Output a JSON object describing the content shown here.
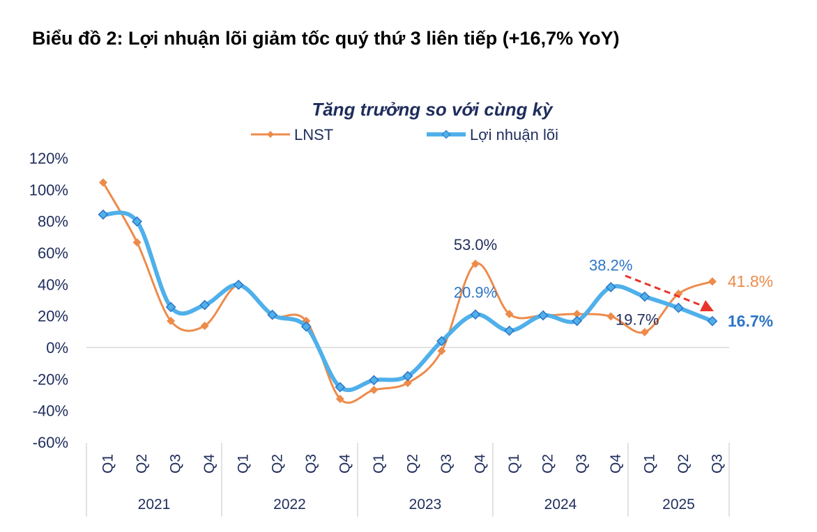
{
  "page_title": "Biểu đồ 2: Lợi nhuận lõi giảm tốc quý thứ 3 liên tiếp (+16,7% YoY)",
  "chart_data": {
    "type": "line",
    "title": "Tăng trưởng so với cùng kỳ",
    "legend_position": "top",
    "ylim": [
      -60,
      120
    ],
    "yticks": [
      "-60%",
      "-40%",
      "-20%",
      "0%",
      "20%",
      "40%",
      "60%",
      "80%",
      "100%",
      "120%"
    ],
    "ytick_values": [
      -60,
      -40,
      -20,
      0,
      20,
      40,
      60,
      80,
      100,
      120
    ],
    "grid": false,
    "categories": [
      "Q1",
      "Q2",
      "Q3",
      "Q4",
      "Q1",
      "Q2",
      "Q3",
      "Q4",
      "Q1",
      "Q2",
      "Q3",
      "Q4",
      "Q1",
      "Q2",
      "Q3",
      "Q4",
      "Q1",
      "Q2",
      "Q3"
    ],
    "years": [
      "2021",
      "2022",
      "2023",
      "2024",
      "2025"
    ],
    "series": [
      {
        "name": "LNST",
        "color": "#ED8B4B",
        "values": [
          104.5,
          66.6,
          16.8,
          13.7,
          39.7,
          20.3,
          16.8,
          -32.6,
          -26.9,
          -22.5,
          -2.2,
          53.0,
          21.2,
          20.3,
          21.2,
          19.7,
          9.7,
          34.0,
          41.8
        ]
      },
      {
        "name": "Lợi nhuận lõi",
        "color": "#4FB0EA",
        "values": [
          84.2,
          79.8,
          25.6,
          26.9,
          39.7,
          20.7,
          13.2,
          -25.1,
          -20.7,
          -18.1,
          4.0,
          20.9,
          10.6,
          20.3,
          16.8,
          38.2,
          32.2,
          25.1,
          16.7
        ]
      }
    ],
    "annotations": [
      {
        "text": "53.0%",
        "series": 0,
        "index": 11,
        "color": "#1F2D5C"
      },
      {
        "text": "20.9%",
        "series": 1,
        "index": 11,
        "color": "#2E75C7"
      },
      {
        "text": "38.2%",
        "series": 1,
        "index": 15,
        "color": "#2E75C7"
      },
      {
        "text": "19.7%",
        "series": 0,
        "index": 15,
        "color": "#1F2D5C"
      },
      {
        "text": "41.8%",
        "series": 0,
        "index": 18,
        "color": "#ED8B4B"
      },
      {
        "text": "16.7%",
        "series": 1,
        "index": 18,
        "color": "#2E75C7"
      }
    ],
    "trend_arrow_color": "#E8352A"
  }
}
